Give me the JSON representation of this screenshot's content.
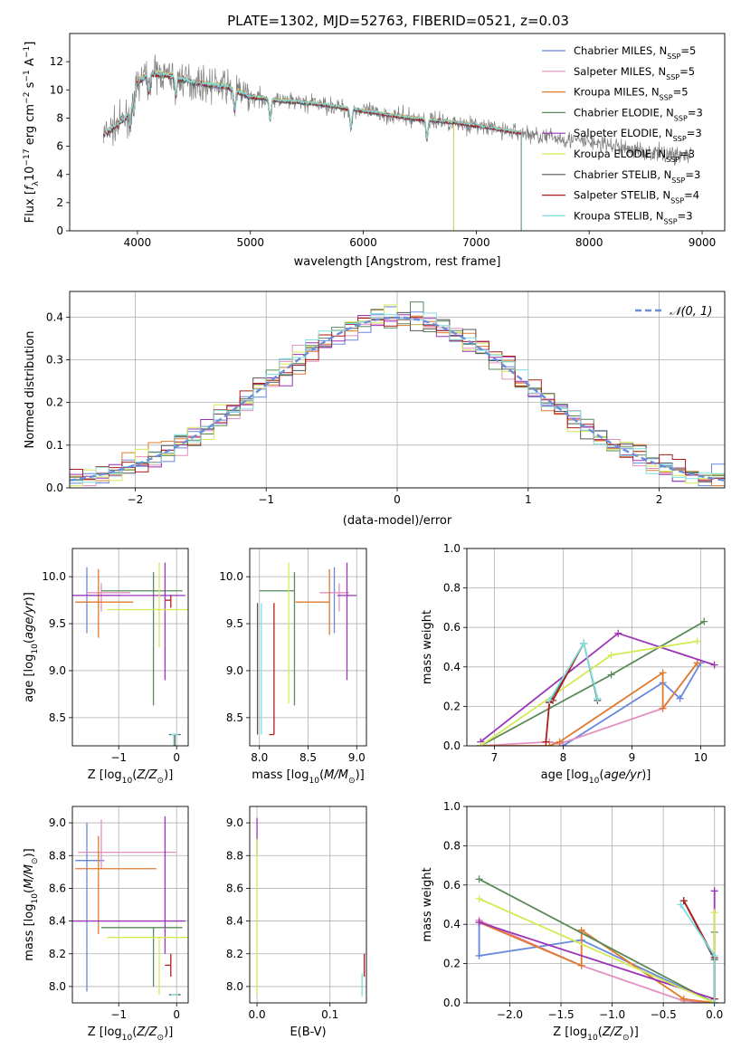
{
  "figure_title": "PLATE=1302, MJD=52763, FIBERID=0521, z=0.03",
  "colors": {
    "Chabrier MILES": "#6688dd",
    "Salpeter MILES": "#e38fbf",
    "Kroupa MILES": "#e07a2e",
    "Chabrier ELODIE": "#5a8a5a",
    "Salpeter ELODIE": "#9b35b5",
    "Kroupa ELODIE": "#d4ea55",
    "Chabrier STELIB": "#555555",
    "Salpeter STELIB": "#b01c1c",
    "Kroupa STELIB": "#7fdede",
    "observed": "#808080",
    "normal_curve": "#6a8fd8"
  },
  "chart_data": [
    {
      "type": "line",
      "id": "spectrum",
      "title": "PLATE=1302, MJD=52763, FIBERID=0521, z=0.03",
      "xlabel": "wavelength [Angstrom, rest frame]",
      "ylabel": "Flux [f_λ 10^-17 erg cm^-2 s^-1 A^-1]",
      "xlim": [
        3400,
        9200
      ],
      "ylim": [
        0,
        14
      ],
      "xticks": [
        4000,
        5000,
        6000,
        7000,
        8000,
        9000
      ],
      "yticks": [
        0,
        2,
        4,
        6,
        8,
        10,
        12
      ],
      "grid": false,
      "legend_position": "top-right",
      "legend": [
        {
          "pre": "Chabrier MILES, N",
          "sub": "SSP",
          "post": "=5"
        },
        {
          "pre": "Salpeter MILES, N",
          "sub": "SSP",
          "post": "=5"
        },
        {
          "pre": "Kroupa MILES, N",
          "sub": "SSP",
          "post": "=5"
        },
        {
          "pre": "Chabrier ELODIE, N",
          "sub": "SSP",
          "post": "=3"
        },
        {
          "pre": "Salpeter ELODIE, N",
          "sub": "SSP",
          "post": "=3"
        },
        {
          "pre": "Kroupa ELODIE, N",
          "sub": "SSP",
          "post": "=3"
        },
        {
          "pre": "Chabrier STELIB, N",
          "sub": "SSP",
          "post": "=3"
        },
        {
          "pre": "Salpeter STELIB, N",
          "sub": "SSP",
          "post": "=4"
        },
        {
          "pre": "Kroupa STELIB, N",
          "sub": "SSP",
          "post": "=3"
        }
      ],
      "model_wavelength_ranges": {
        "MILES": [
          3700,
          7400
        ],
        "ELODIE": [
          3900,
          6800
        ],
        "STELIB": [
          3700,
          7400
        ]
      },
      "continuum": {
        "x": [
          3700,
          3900,
          4000,
          4100,
          4300,
          4500,
          4800,
          5000,
          5300,
          5600,
          6000,
          6400,
          6800,
          7200,
          7500,
          8000,
          8500,
          8900
        ],
        "y": [
          6.8,
          8.0,
          10.5,
          11.2,
          11.0,
          10.5,
          10.2,
          9.5,
          9.2,
          9.0,
          8.5,
          8.0,
          7.7,
          7.2,
          6.8,
          6.3,
          5.6,
          5.3
        ]
      },
      "observed_wavelength_range": [
        3700,
        8900
      ]
    },
    {
      "type": "line",
      "id": "residual-histogram",
      "xlabel": "(data-model)/error",
      "ylabel": "Normed distribution",
      "xlim": [
        -2.5,
        2.5
      ],
      "ylim": [
        0,
        0.46
      ],
      "xticks": [
        -2,
        -1,
        0,
        1,
        2
      ],
      "yticks": [
        0.0,
        0.1,
        0.2,
        0.3,
        0.4
      ],
      "grid": true,
      "legend_position": "top-right",
      "legend_label": "𝒩(0, 1)",
      "bin_width": 0.1
    },
    {
      "type": "scatter",
      "id": "age-vs-Z",
      "xlabel": "Z [log10(Z/Z⊙)]",
      "ylabel": "age [log10(age/yr)]",
      "xlim": [
        -1.8,
        0.2
      ],
      "ylim": [
        8.2,
        10.3
      ],
      "xticks": [
        -1,
        0
      ],
      "yticks": [
        8.5,
        9.0,
        9.5,
        10.0
      ],
      "grid": true,
      "points": [
        {
          "model": "Chabrier MILES",
          "x": -1.55,
          "y": 9.8,
          "xerr": [
            0.25,
            0.6
          ],
          "yerr": [
            0.4,
            0.3
          ]
        },
        {
          "model": "Salpeter MILES",
          "x": -1.3,
          "y": 9.83,
          "xerr": [
            0.25,
            0.5
          ],
          "yerr": [
            0.2,
            0.1
          ]
        },
        {
          "model": "Kroupa MILES",
          "x": -1.35,
          "y": 9.73,
          "xerr": [
            0.4,
            0.6
          ],
          "yerr": [
            0.38,
            0.35
          ]
        },
        {
          "model": "Chabrier ELODIE",
          "x": -0.4,
          "y": 9.85,
          "xerr": [
            0.9,
            0.5
          ],
          "yerr": [
            1.22,
            0.2
          ]
        },
        {
          "model": "Salpeter ELODIE",
          "x": -0.2,
          "y": 9.8,
          "xerr": [
            1.6,
            0.35
          ],
          "yerr": [
            0.9,
            0.35
          ]
        },
        {
          "model": "Kroupa ELODIE",
          "x": -0.3,
          "y": 9.65,
          "xerr": [
            0.9,
            0.5
          ],
          "yerr": [
            0.4,
            0.5
          ]
        },
        {
          "model": "Chabrier STELIB",
          "x": -0.03,
          "y": 8.32,
          "xerr": [
            0.1,
            0.1
          ],
          "yerr": [
            1.3,
            0
          ]
        },
        {
          "model": "Salpeter STELIB",
          "x": -0.1,
          "y": 9.75,
          "xerr": [
            0.1,
            0.0
          ],
          "yerr": [
            0.08,
            0.05
          ]
        },
        {
          "model": "Kroupa STELIB",
          "x": -0.05,
          "y": 8.32,
          "xerr": [
            0.05,
            0.08
          ],
          "yerr": [
            1.4,
            0.0
          ]
        }
      ]
    },
    {
      "type": "scatter",
      "id": "age-vs-mass",
      "xlabel": "mass [log10(M/M⊙)]",
      "ylabel": "",
      "xlim": [
        7.9,
        9.1
      ],
      "ylim": [
        8.2,
        10.3
      ],
      "xticks": [
        8.0,
        8.5,
        9.0
      ],
      "yticks": [
        8.5,
        9.0,
        9.5,
        10.0
      ],
      "grid": true,
      "points": [
        {
          "model": "Chabrier MILES",
          "x": 8.77,
          "y": 9.8,
          "xerr": [
            0.0,
            0.0
          ],
          "yerr": [
            0.4,
            0.3
          ]
        },
        {
          "model": "Salpeter MILES",
          "x": 8.82,
          "y": 9.83,
          "xerr": [
            0.2,
            0.1
          ],
          "yerr": [
            0.2,
            0.1
          ]
        },
        {
          "model": "Kroupa MILES",
          "x": 8.72,
          "y": 9.73,
          "xerr": [
            0.35,
            0.0
          ],
          "yerr": [
            0.35,
            0.35
          ]
        },
        {
          "model": "Chabrier ELODIE",
          "x": 8.36,
          "y": 9.85,
          "xerr": [
            0.36,
            0.0
          ],
          "yerr": [
            1.22,
            0.2
          ]
        },
        {
          "model": "Salpeter ELODIE",
          "x": 8.9,
          "y": 9.8,
          "xerr": [
            0.1,
            0.1
          ],
          "yerr": [
            0.9,
            0.35
          ]
        },
        {
          "model": "Kroupa ELODIE",
          "x": 8.3,
          "y": 9.65,
          "xerr": [
            0.0,
            0.0
          ],
          "yerr": [
            1.0,
            0.5
          ]
        },
        {
          "model": "Chabrier STELIB",
          "x": 7.98,
          "y": 8.32,
          "xerr": [
            0.0,
            0.0
          ],
          "yerr": [
            0.0,
            1.4
          ]
        },
        {
          "model": "Salpeter STELIB",
          "x": 8.15,
          "y": 8.32,
          "xerr": [
            0.05,
            0.0
          ],
          "yerr": [
            0.0,
            1.4
          ]
        },
        {
          "model": "Kroupa STELIB",
          "x": 8.02,
          "y": 8.32,
          "xerr": [
            0.0,
            0.0
          ],
          "yerr": [
            0.0,
            1.4
          ]
        }
      ]
    },
    {
      "type": "line",
      "id": "massweight-vs-age",
      "xlabel": "age [log10(age/yr)]",
      "ylabel": "mass weight",
      "xlim": [
        6.6,
        10.35
      ],
      "ylim": [
        0,
        1.0
      ],
      "xticks": [
        7,
        8,
        9,
        10
      ],
      "yticks": [
        0.0,
        0.2,
        0.4,
        0.6,
        0.8,
        1.0
      ],
      "grid": true,
      "series": [
        {
          "model": "Chabrier MILES",
          "x": [
            8.0,
            9.45,
            9.7,
            10.0
          ],
          "y": [
            0.0,
            0.32,
            0.24,
            0.42
          ]
        },
        {
          "model": "Salpeter MILES",
          "x": [
            6.8,
            7.8,
            7.95,
            9.45,
            9.95
          ],
          "y": [
            0.0,
            0.02,
            0.01,
            0.19,
            0.42
          ]
        },
        {
          "model": "Kroupa MILES",
          "x": [
            6.8,
            7.8,
            7.95,
            9.45,
            9.45,
            9.95
          ],
          "y": [
            0.0,
            0.0,
            0.02,
            0.37,
            0.19,
            0.42
          ]
        },
        {
          "model": "Chabrier ELODIE",
          "x": [
            6.8,
            8.7,
            10.05
          ],
          "y": [
            0.0,
            0.36,
            0.63
          ]
        },
        {
          "model": "Salpeter ELODIE",
          "x": [
            6.8,
            8.8,
            10.2
          ],
          "y": [
            0.02,
            0.57,
            0.41
          ]
        },
        {
          "model": "Kroupa ELODIE",
          "x": [
            6.8,
            8.7,
            9.95
          ],
          "y": [
            0.0,
            0.46,
            0.53
          ]
        },
        {
          "model": "Chabrier STELIB",
          "x": [
            7.8,
            8.3,
            8.5
          ],
          "y": [
            0.22,
            0.52,
            0.23
          ]
        },
        {
          "model": "Salpeter STELIB",
          "x": [
            7.75,
            7.8,
            7.85,
            8.3
          ],
          "y": [
            0.02,
            0.22,
            0.23,
            0.52
          ]
        },
        {
          "model": "Kroupa STELIB",
          "x": [
            7.8,
            8.3,
            8.5
          ],
          "y": [
            0.23,
            0.52,
            0.24
          ]
        }
      ]
    },
    {
      "type": "scatter",
      "id": "mass-vs-Z",
      "xlabel": "Z [log10(Z/Z⊙)]",
      "ylabel": "mass [log10(M/M⊙)]",
      "xlim": [
        -1.8,
        0.2
      ],
      "ylim": [
        7.9,
        9.1
      ],
      "xticks": [
        -1,
        0
      ],
      "yticks": [
        8.0,
        8.2,
        8.4,
        8.6,
        8.8,
        9.0
      ],
      "grid": true,
      "points": [
        {
          "model": "Chabrier MILES",
          "x": -1.55,
          "y": 8.77,
          "xerr": [
            0.2,
            0.3
          ],
          "yerr": [
            0.8,
            0.23
          ]
        },
        {
          "model": "Salpeter MILES",
          "x": -1.3,
          "y": 8.82,
          "xerr": [
            0.4,
            1.3
          ],
          "yerr": [
            0.1,
            0.2
          ]
        },
        {
          "model": "Kroupa MILES",
          "x": -1.35,
          "y": 8.72,
          "xerr": [
            0.4,
            1.0
          ],
          "yerr": [
            0.4,
            0.2
          ]
        },
        {
          "model": "Chabrier ELODIE",
          "x": -0.4,
          "y": 8.36,
          "xerr": [
            0.9,
            0.5
          ],
          "yerr": [
            0.36,
            0.0
          ]
        },
        {
          "model": "Salpeter ELODIE",
          "x": -0.2,
          "y": 8.4,
          "xerr": [
            1.6,
            0.35
          ],
          "yerr": [
            0.2,
            0.64
          ]
        },
        {
          "model": "Kroupa ELODIE",
          "x": -0.3,
          "y": 8.3,
          "xerr": [
            0.9,
            0.5
          ],
          "yerr": [
            0.35,
            0.0
          ]
        },
        {
          "model": "Chabrier STELIB",
          "x": -0.03,
          "y": 7.95,
          "xerr": [
            0.1,
            0.1
          ],
          "yerr": [
            0.0,
            0.0
          ]
        },
        {
          "model": "Salpeter STELIB",
          "x": -0.1,
          "y": 8.13,
          "xerr": [
            0.1,
            0.0
          ],
          "yerr": [
            0.07,
            0.07
          ]
        },
        {
          "model": "Kroupa STELIB",
          "x": -0.05,
          "y": 7.95,
          "xerr": [
            0.05,
            0.08
          ],
          "yerr": [
            0.0,
            0.0
          ]
        }
      ]
    },
    {
      "type": "scatter",
      "id": "mass-vs-ebv",
      "xlabel": "E(B-V)",
      "ylabel": "",
      "xlim": [
        -0.01,
        0.15
      ],
      "ylim": [
        7.9,
        9.1
      ],
      "xticks": [
        0.0,
        0.1
      ],
      "yticks": [
        8.0,
        8.2,
        8.4,
        8.6,
        8.8,
        9.0
      ],
      "grid": true,
      "points": [
        {
          "model": "Chabrier MILES",
          "x": 0.0,
          "y": 8.77,
          "xerr": [
            0,
            0
          ],
          "yerr": [
            0.0,
            0.0
          ]
        },
        {
          "model": "Salpeter ELODIE",
          "x": 0.0,
          "y": 8.9,
          "xerr": [
            0,
            0
          ],
          "yerr": [
            0.1,
            0.13
          ]
        },
        {
          "model": "Kroupa ELODIE",
          "x": 0.0,
          "y": 8.3,
          "xerr": [
            0,
            0
          ],
          "yerr": [
            0.35,
            0.6
          ]
        },
        {
          "model": "Salpeter STELIB",
          "x": 0.147,
          "y": 8.13,
          "xerr": [
            0,
            0
          ],
          "yerr": [
            0.07,
            0.07
          ]
        },
        {
          "model": "Kroupa STELIB",
          "x": 0.144,
          "y": 8.0,
          "xerr": [
            0,
            0
          ],
          "yerr": [
            0.06,
            0.08
          ]
        }
      ]
    },
    {
      "type": "line",
      "id": "massweight-vs-Z",
      "xlabel": "Z [log10(Z/Z⊙)]",
      "ylabel": "mass weight",
      "xlim": [
        -2.42,
        0.1
      ],
      "ylim": [
        0,
        1.0
      ],
      "xticks": [
        -2.0,
        -1.5,
        -1.0,
        -0.5,
        0.0
      ],
      "yticks": [
        0.0,
        0.2,
        0.4,
        0.6,
        0.8,
        1.0
      ],
      "grid": true,
      "series": [
        {
          "model": "Chabrier MILES",
          "x": [
            -2.3,
            -2.3,
            -1.3,
            0.0
          ],
          "y": [
            0.42,
            0.24,
            0.32,
            0.0
          ]
        },
        {
          "model": "Salpeter MILES",
          "x": [
            -2.3,
            -1.3,
            -0.3,
            0.0
          ],
          "y": [
            0.42,
            0.19,
            0.01,
            0.0
          ]
        },
        {
          "model": "Kroupa MILES",
          "x": [
            -2.3,
            -1.3,
            -1.3,
            -0.3,
            0.0
          ],
          "y": [
            0.41,
            0.19,
            0.37,
            0.02,
            0.0
          ]
        },
        {
          "model": "Chabrier ELODIE",
          "x": [
            -2.3,
            0.0,
            0.0
          ],
          "y": [
            0.63,
            0.0,
            0.36
          ]
        },
        {
          "model": "Salpeter ELODIE",
          "x": [
            -2.3,
            0.0,
            0.0
          ],
          "y": [
            0.41,
            0.02,
            0.57
          ]
        },
        {
          "model": "Kroupa ELODIE",
          "x": [
            -2.3,
            0.0,
            0.0
          ],
          "y": [
            0.53,
            0.0,
            0.46
          ]
        },
        {
          "model": "Chabrier STELIB",
          "x": [
            -0.3,
            0.0,
            0.0
          ],
          "y": [
            0.52,
            0.22,
            0.0
          ]
        },
        {
          "model": "Salpeter STELIB",
          "x": [
            -0.3,
            0.0,
            0.0
          ],
          "y": [
            0.52,
            0.23,
            0.02
          ]
        },
        {
          "model": "Kroupa STELIB",
          "x": [
            -0.33,
            0.0,
            0.0
          ],
          "y": [
            0.5,
            0.24,
            0.0
          ]
        }
      ]
    }
  ]
}
